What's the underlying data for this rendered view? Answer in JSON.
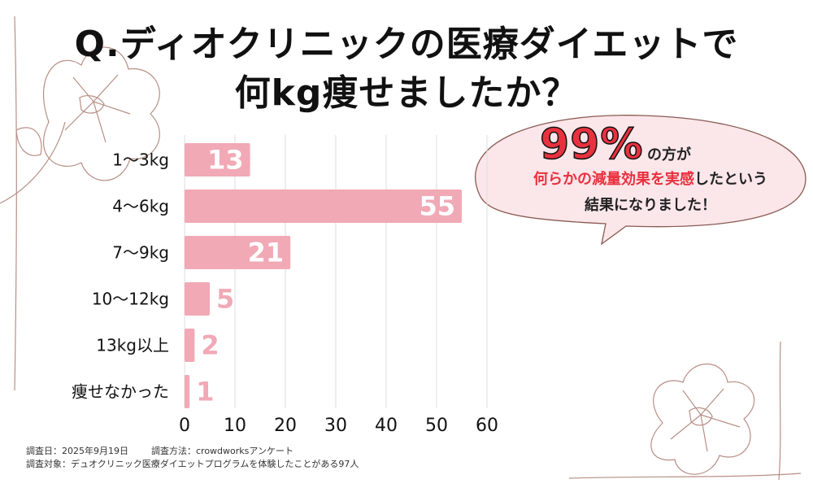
{
  "title_line1": "Q.ディオクリニックの医療ダイエットで",
  "title_line2": "何kg痩せましたか？",
  "callout": {
    "percent": "99%",
    "suffix": "の方が",
    "line2_highlight": "何らかの減量効果を実感",
    "line2_rest": "したという",
    "line3": "結果になりました！"
  },
  "footer": {
    "date": "調査日：2025年9月19日",
    "method": "調査方法：crowdworksアンケート",
    "target": "調査対象：デュオクリニック医療ダイエットプログラムを体験したことがある97人"
  },
  "colors": {
    "bar": "#f1a9b6",
    "value_label": "#ffffff",
    "value_label_outside": "#f1a9b6",
    "grid": "#dddddd",
    "accent": "#e8313e",
    "bubble_fill": "#fbe6ea"
  },
  "chart_data": {
    "type": "bar",
    "orientation": "horizontal",
    "categories": [
      "1〜3kg",
      "4〜6kg",
      "7〜9kg",
      "10〜12kg",
      "13kg以上",
      "痩せなかった"
    ],
    "values": [
      13,
      55,
      21,
      5,
      2,
      1
    ],
    "xlim": [
      0,
      60
    ],
    "xticks": [
      0,
      10,
      20,
      30,
      40,
      50,
      60
    ],
    "grid": true
  }
}
